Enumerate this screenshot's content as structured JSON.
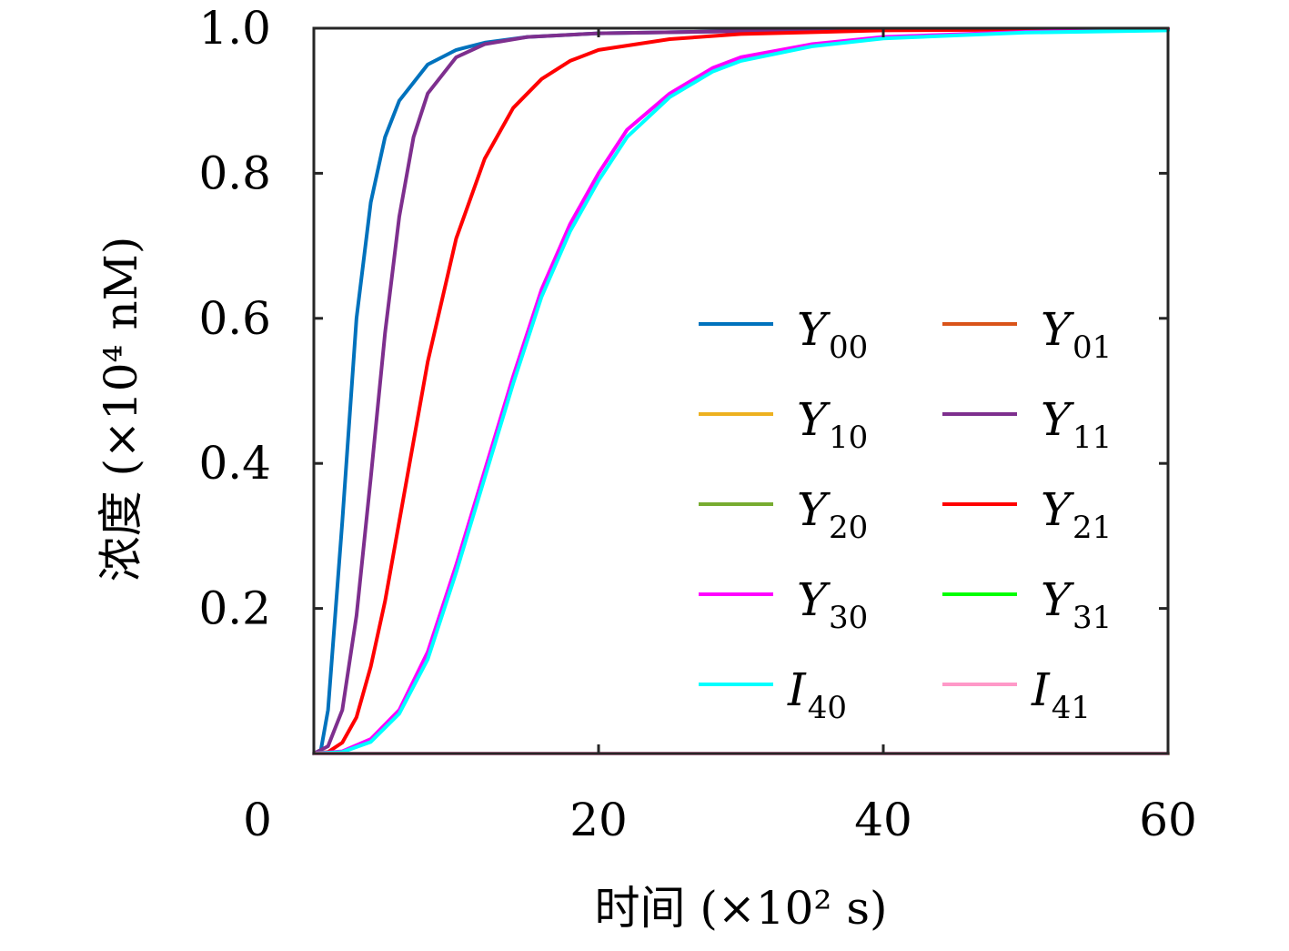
{
  "chart_data": {
    "type": "line",
    "xlabel": "时间 (×10² s)",
    "ylabel": "浓度 (×10⁴ nM)",
    "xlim": [
      0,
      60
    ],
    "ylim": [
      0,
      1.0
    ],
    "x_ticks": [
      0,
      20,
      40,
      60
    ],
    "y_ticks": [
      0.2,
      0.4,
      0.6,
      0.8,
      1.0
    ],
    "x_tick_labels": [
      "0",
      "20",
      "40",
      "60"
    ],
    "y_tick_labels": [
      "0.2",
      "0.4",
      "0.6",
      "0.8",
      "1.0"
    ],
    "grid": false,
    "legend_position": "right",
    "legend_columns": 2,
    "series": [
      {
        "name": "Y00",
        "label_main": "Y",
        "label_sub": "00",
        "color": "#0072BD",
        "x": [
          0,
          0.5,
          1,
          2,
          3,
          4,
          5,
          6,
          8,
          10,
          12,
          15,
          20,
          30,
          40,
          60
        ],
        "y": [
          0,
          0.005,
          0.06,
          0.32,
          0.6,
          0.76,
          0.85,
          0.9,
          0.95,
          0.97,
          0.98,
          0.988,
          0.993,
          0.996,
          0.998,
          0.999
        ]
      },
      {
        "name": "Y01",
        "label_main": "Y",
        "label_sub": "01",
        "color": "#D95319",
        "x": [
          0,
          60
        ],
        "y": [
          0,
          0
        ]
      },
      {
        "name": "Y10",
        "label_main": "Y",
        "label_sub": "10",
        "color": "#EDB120",
        "x": [
          0,
          60
        ],
        "y": [
          0,
          0
        ]
      },
      {
        "name": "Y11",
        "label_main": "Y",
        "label_sub": "11",
        "color": "#7E2F8E",
        "x": [
          0,
          1,
          2,
          3,
          4,
          5,
          6,
          7,
          8,
          10,
          12,
          15,
          20,
          30,
          40,
          60
        ],
        "y": [
          0,
          0.01,
          0.06,
          0.19,
          0.38,
          0.58,
          0.74,
          0.85,
          0.91,
          0.96,
          0.978,
          0.988,
          0.993,
          0.996,
          0.998,
          0.999
        ]
      },
      {
        "name": "Y20",
        "label_main": "Y",
        "label_sub": "20",
        "color": "#77AC30",
        "x": [
          0,
          60
        ],
        "y": [
          0,
          0
        ]
      },
      {
        "name": "Y21",
        "label_main": "Y",
        "label_sub": "21",
        "color": "#FF0000",
        "x": [
          0,
          1,
          2,
          3,
          4,
          5,
          6,
          8,
          10,
          12,
          14,
          16,
          18,
          20,
          25,
          30,
          40,
          50,
          60
        ],
        "y": [
          0,
          0.002,
          0.015,
          0.05,
          0.12,
          0.21,
          0.32,
          0.54,
          0.71,
          0.82,
          0.89,
          0.93,
          0.955,
          0.97,
          0.985,
          0.992,
          0.997,
          0.998,
          0.999
        ]
      },
      {
        "name": "Y30",
        "label_main": "Y",
        "label_sub": "30",
        "color": "#FF00FF",
        "x": [
          0,
          2,
          4,
          6,
          8,
          10,
          12,
          14,
          16,
          18,
          20,
          22,
          25,
          28,
          30,
          35,
          40,
          50,
          60
        ],
        "y": [
          0,
          0.003,
          0.02,
          0.06,
          0.14,
          0.26,
          0.39,
          0.52,
          0.64,
          0.73,
          0.8,
          0.86,
          0.91,
          0.945,
          0.96,
          0.978,
          0.988,
          0.995,
          0.998
        ]
      },
      {
        "name": "Y31",
        "label_main": "Y",
        "label_sub": "31",
        "color": "#00FF00",
        "x": [
          0,
          60
        ],
        "y": [
          0,
          0
        ]
      },
      {
        "name": "I40",
        "label_main": "I",
        "label_sub": "40",
        "color": "#00FFFF",
        "x": [
          0,
          2,
          4,
          6,
          8,
          10,
          12,
          14,
          16,
          18,
          20,
          22,
          25,
          28,
          30,
          35,
          40,
          50,
          60
        ],
        "y": [
          0,
          0.002,
          0.016,
          0.055,
          0.13,
          0.25,
          0.38,
          0.51,
          0.63,
          0.72,
          0.79,
          0.85,
          0.905,
          0.94,
          0.955,
          0.975,
          0.986,
          0.994,
          0.997
        ]
      },
      {
        "name": "I41",
        "label_main": "I",
        "label_sub": "41",
        "color": "#FF99C8",
        "x": [
          0,
          60
        ],
        "y": [
          0,
          0
        ]
      }
    ]
  }
}
